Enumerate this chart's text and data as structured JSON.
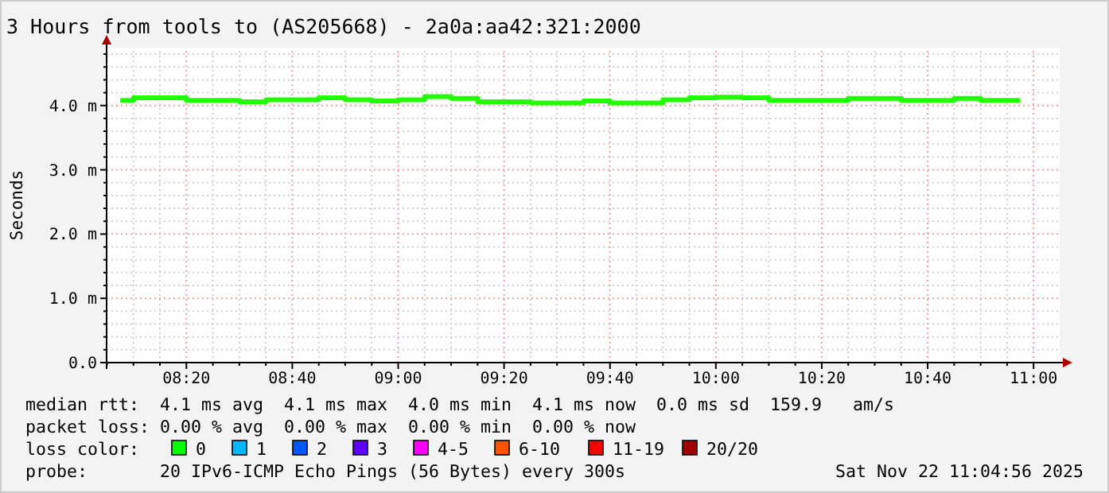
{
  "chart_data": {
    "type": "step",
    "title": "3 Hours from tools to (AS205668) - 2a0a:aa42:321:2000",
    "ylabel": "Seconds",
    "x": [
      8.125,
      8.2083,
      8.2917,
      8.375,
      8.4583,
      8.5417,
      8.625,
      8.7083,
      8.7917,
      8.875,
      8.9583,
      9.0417,
      9.125,
      9.2083,
      9.2917,
      9.375,
      9.4583,
      9.5417,
      9.625,
      9.7083,
      9.7917,
      9.875,
      9.9583,
      10.0417,
      10.125,
      10.2083,
      10.2917,
      10.375,
      10.4583,
      10.5417,
      10.625,
      10.7083,
      10.7917,
      10.875,
      10.9583
    ],
    "series": [
      {
        "color": "#22ff00",
        "values": [
          4.08,
          4.12,
          4.12,
          4.08,
          4.08,
          4.06,
          4.09,
          4.09,
          4.12,
          4.09,
          4.07,
          4.09,
          4.14,
          4.11,
          4.06,
          4.06,
          4.04,
          4.04,
          4.07,
          4.04,
          4.04,
          4.09,
          4.12,
          4.13,
          4.12,
          4.08,
          4.08,
          4.08,
          4.11,
          4.11,
          4.08,
          4.08,
          4.11,
          4.08,
          4.08
        ]
      }
    ],
    "xlim": [
      8.0822,
      11.0822
    ],
    "xticks": [
      {
        "value": 8.0833,
        "label": null
      },
      {
        "value": 8.1667,
        "label": null
      },
      {
        "value": 8.25,
        "label": null
      },
      {
        "value": 8.3333,
        "label": "08:20"
      },
      {
        "value": 8.4167,
        "label": null
      },
      {
        "value": 8.5,
        "label": null
      },
      {
        "value": 8.5833,
        "label": null
      },
      {
        "value": 8.6667,
        "label": "08:40"
      },
      {
        "value": 8.75,
        "label": null
      },
      {
        "value": 8.8333,
        "label": null
      },
      {
        "value": 8.9167,
        "label": null
      },
      {
        "value": 9,
        "label": "09:00"
      },
      {
        "value": 9.0833,
        "label": null
      },
      {
        "value": 9.1667,
        "label": null
      },
      {
        "value": 9.25,
        "label": null
      },
      {
        "value": 9.3333,
        "label": "09:20"
      },
      {
        "value": 9.4167,
        "label": null
      },
      {
        "value": 9.5,
        "label": null
      },
      {
        "value": 9.5833,
        "label": null
      },
      {
        "value": 9.6667,
        "label": "09:40"
      },
      {
        "value": 9.75,
        "label": null
      },
      {
        "value": 9.8333,
        "label": null
      },
      {
        "value": 9.9167,
        "label": null
      },
      {
        "value": 10,
        "label": "10:00"
      },
      {
        "value": 10.0833,
        "label": null
      },
      {
        "value": 10.1667,
        "label": null
      },
      {
        "value": 10.25,
        "label": null
      },
      {
        "value": 10.3333,
        "label": "10:20"
      },
      {
        "value": 10.4167,
        "label": null
      },
      {
        "value": 10.5,
        "label": null
      },
      {
        "value": 10.5833,
        "label": null
      },
      {
        "value": 10.6667,
        "label": "10:40"
      },
      {
        "value": 10.75,
        "label": null
      },
      {
        "value": 10.8333,
        "label": null
      },
      {
        "value": 10.9167,
        "label": null
      },
      {
        "value": 11,
        "label": "11:00"
      }
    ],
    "ylim": [
      0,
      4.9
    ],
    "yticks": [
      {
        "value": 0,
        "label": "0.0"
      },
      {
        "value": 0.2,
        "label": null
      },
      {
        "value": 0.4,
        "label": null
      },
      {
        "value": 0.6,
        "label": null
      },
      {
        "value": 0.8,
        "label": null
      },
      {
        "value": 1,
        "label": "1.0 m"
      },
      {
        "value": 1.2,
        "label": null
      },
      {
        "value": 1.4,
        "label": null
      },
      {
        "value": 1.6,
        "label": null
      },
      {
        "value": 1.8,
        "label": null
      },
      {
        "value": 2,
        "label": "2.0 m"
      },
      {
        "value": 2.2,
        "label": null
      },
      {
        "value": 2.4,
        "label": null
      },
      {
        "value": 2.6,
        "label": null
      },
      {
        "value": 2.8,
        "label": null
      },
      {
        "value": 3,
        "label": "3.0 m"
      },
      {
        "value": 3.2,
        "label": null
      },
      {
        "value": 3.4,
        "label": null
      },
      {
        "value": 3.6,
        "label": null
      },
      {
        "value": 3.8,
        "label": null
      },
      {
        "value": 4,
        "label": "4.0 m"
      },
      {
        "value": 4.2,
        "label": null
      },
      {
        "value": 4.4,
        "label": null
      },
      {
        "value": 4.6,
        "label": null
      },
      {
        "value": 4.8,
        "label": null
      }
    ],
    "grid": true,
    "annotations": [
      "median rtt:  4.1 ms avg  4.1 ms max  4.0 ms min  4.1 ms now  0.0 ms sd  159.9   am/s",
      "packet loss: 0.00 % avg  0.00 % max  0.00 % min  0.00 % now",
      "loss color:",
      "0",
      "1",
      "2",
      "3",
      "4-5",
      "6-10",
      "11-19",
      "20/20",
      "probe:       20 IPv6-ICMP Echo Pings (56 Bytes) every 300s",
      "Sat Nov 22 11:04:56 2025"
    ]
  }
}
